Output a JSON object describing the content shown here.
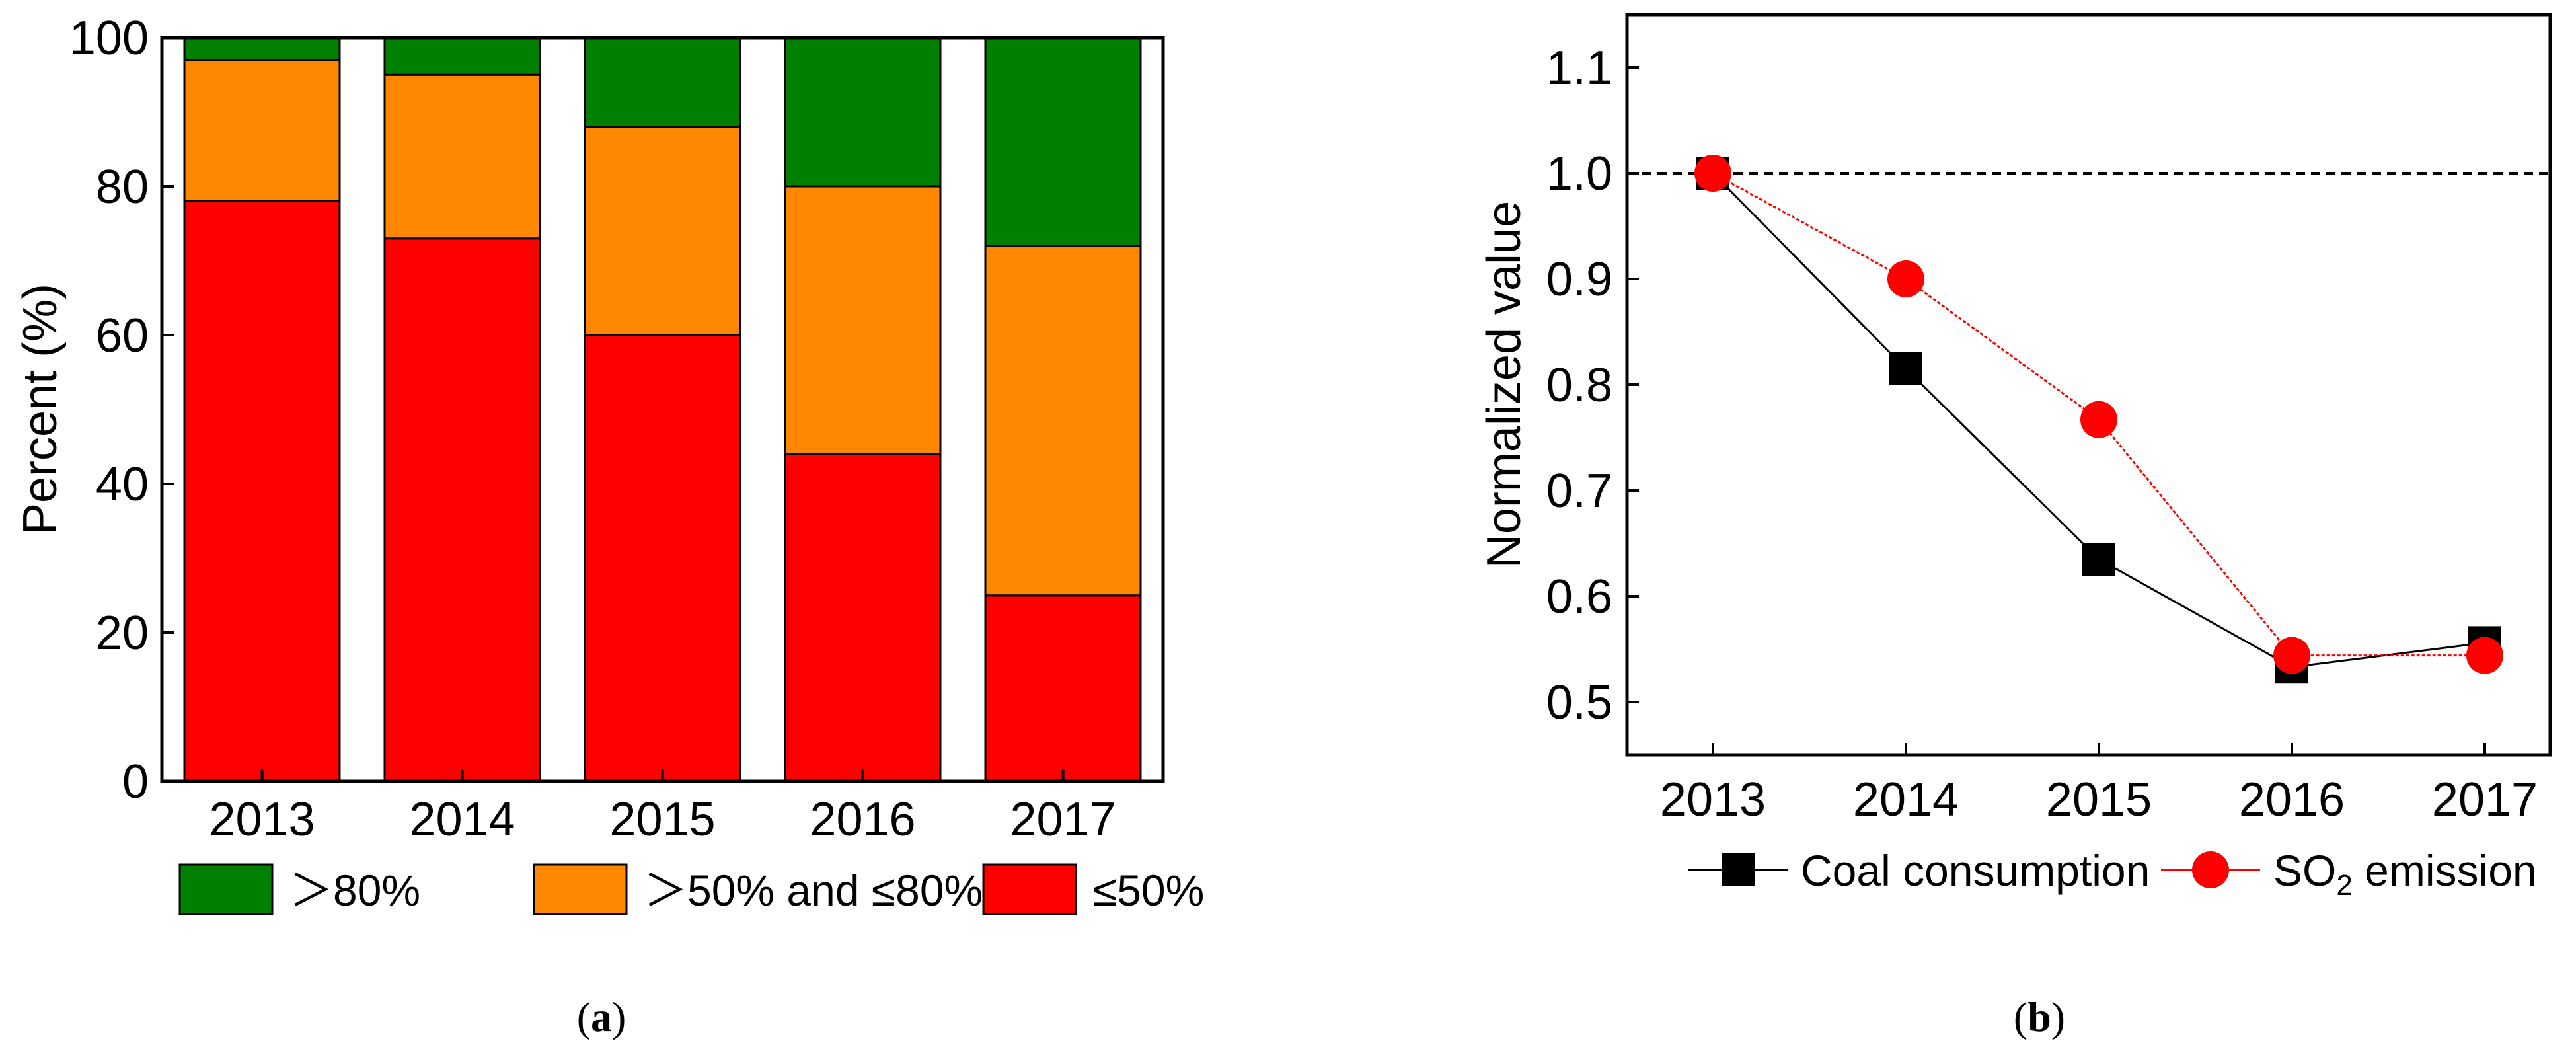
{
  "chart_data": [
    {
      "type": "bar",
      "stacked": true,
      "panel_label": "(a)",
      "panel_letter": "a",
      "categories": [
        "2013",
        "2014",
        "2015",
        "2016",
        "2017"
      ],
      "series": [
        {
          "name": "≤50%",
          "color": "#ff0000",
          "values": [
            78,
            73,
            60,
            44,
            25
          ]
        },
        {
          "name": "＞50% and ≤80%",
          "color": "#ff8800",
          "values": [
            19,
            22,
            28,
            36,
            47
          ]
        },
        {
          "name": "＞80%",
          "color": "#008000",
          "values": [
            3,
            5,
            12,
            20,
            28
          ]
        }
      ],
      "legend_order": [
        "＞80%",
        "＞50% and ≤80%",
        "≤50%"
      ],
      "legend_position": "bottom",
      "title": "",
      "xlabel": "",
      "ylabel": "Percent (%)",
      "ylim": [
        0,
        100
      ],
      "yticks": [
        "0",
        "20",
        "40",
        "60",
        "80",
        "100"
      ],
      "grid": false
    },
    {
      "type": "line",
      "panel_label": "(b)",
      "panel_letter": "b",
      "categories": [
        "2013",
        "2014",
        "2015",
        "2016",
        "2017"
      ],
      "series": [
        {
          "name": "Coal consumption",
          "marker": "square",
          "color": "#000000",
          "values": [
            1.0,
            0.815,
            0.635,
            0.533,
            0.556
          ]
        },
        {
          "name": "SO2 emission",
          "name_parts": [
            "SO",
            "2",
            " emission"
          ],
          "marker": "circle",
          "color": "#ff0000",
          "values": [
            1.0,
            0.9,
            0.767,
            0.544,
            0.544
          ]
        }
      ],
      "reference_line": {
        "y": 1.0,
        "style": "dashed"
      },
      "legend_position": "bottom",
      "title": "",
      "xlabel": "",
      "ylabel": "Normalized value",
      "ylim": [
        0.45,
        1.15
      ],
      "yticks": [
        "0.5",
        "0.6",
        "0.7",
        "0.8",
        "0.9",
        "1.0",
        "1.1"
      ],
      "grid": false
    }
  ]
}
